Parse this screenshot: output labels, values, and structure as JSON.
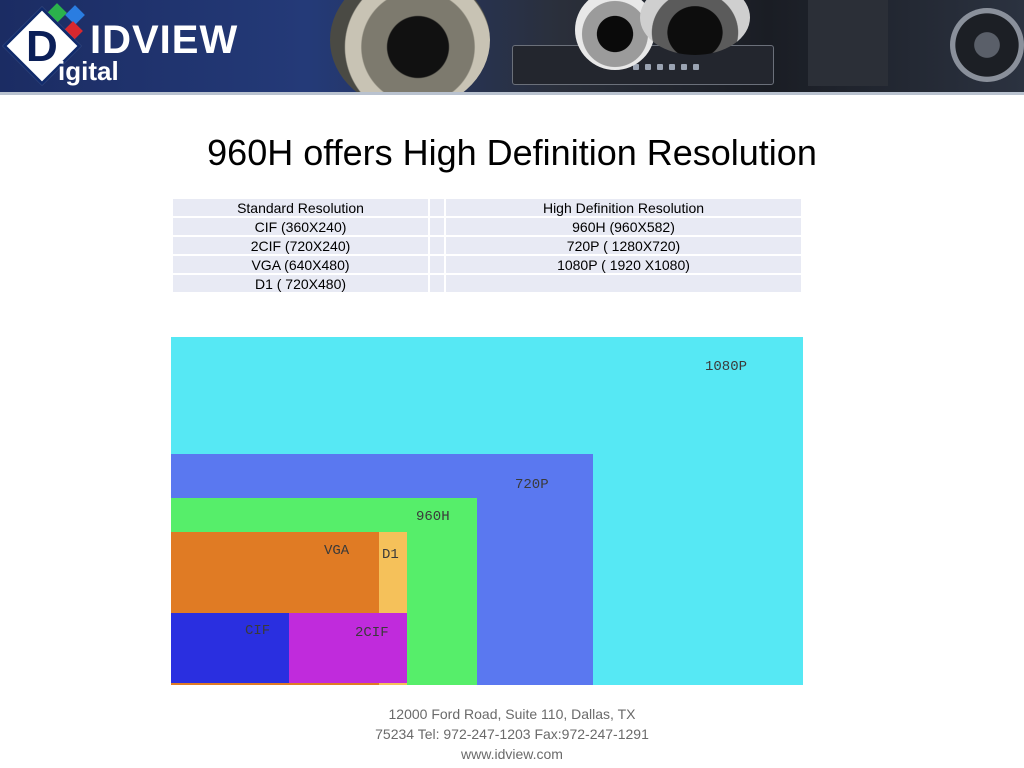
{
  "banner": {
    "logo_letter": "D",
    "brand": "IDVIEW",
    "brand_sub": "igital"
  },
  "title": "960H offers High Definition Resolution",
  "table": {
    "headers": [
      "Standard Resolution",
      "High Definition Resolution"
    ],
    "rows": [
      [
        "CIF (360X240)",
        "960H (960X582)"
      ],
      [
        "2CIF (720X240)",
        "720P ( 1280X720)"
      ],
      [
        "VGA (640X480)",
        "1080P ( 1920 X1080)"
      ],
      [
        "D1 ( 720X480)",
        ""
      ]
    ]
  },
  "diagram": {
    "labels": {
      "p1080": "1080P",
      "p720": "720P",
      "h960": "960H",
      "vga": "VGA",
      "d1": "D1",
      "cif": "CIF",
      "cif2": "2CIF"
    },
    "colors": {
      "p1080": "#56e8f4",
      "p720": "#5a78f0",
      "h960": "#56ee6a",
      "vga": "#e07b24",
      "d1": "#f5c15a",
      "cif": "#2a2fe0",
      "cif2": "#c02bdc"
    }
  },
  "footer": {
    "line1": "12000 Ford Road, Suite 110, Dallas, TX",
    "line2": "75234 Tel: 972-247-1203 Fax:972-247-1291",
    "line3": "www.idview.com"
  }
}
